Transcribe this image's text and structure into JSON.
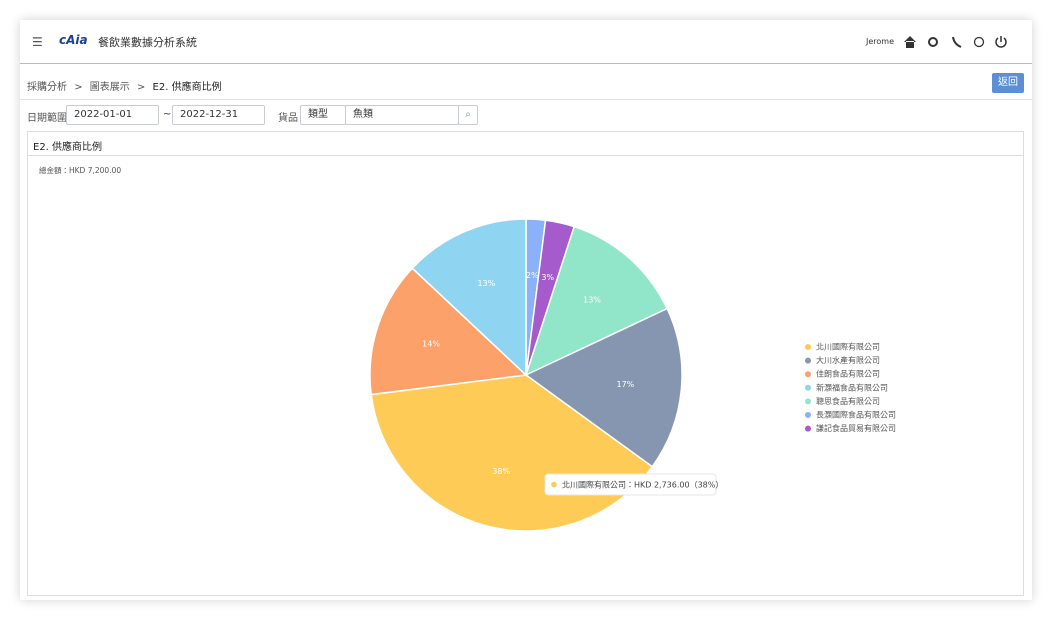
{
  "header": {
    "brand": "cAia",
    "title": "餐飲業數據分析系統",
    "user": "Jerome"
  },
  "breadcrumb": {
    "items": [
      "採購分析",
      "圖表展示",
      "E2. 供應商比例"
    ],
    "separator": ">"
  },
  "back_button": "返回",
  "filters": {
    "date_label": "日期範圍",
    "start": "2022-01-01",
    "separator": "~",
    "end": "2022-12-31",
    "goods_label": "貨品",
    "type": "類型",
    "category": "魚類"
  },
  "panel": {
    "title": "E2. 供應商比例"
  },
  "chart_data": {
    "type": "pie",
    "subtitle": "總金額：HKD 7,200.00",
    "categories": [
      "北川國際有限公司",
      "大川水產有限公司",
      "佳朗食品有限公司",
      "新灝福食品有限公司",
      "聰思食品有限公司",
      "長灝國際食品有限公司",
      "謙記食品貿易有限公司"
    ],
    "values": [
      38,
      17,
      14,
      13,
      13,
      2,
      3
    ],
    "value_labels": [
      "38%",
      "17%",
      "14%",
      "13%",
      "13%",
      "2%",
      "3%"
    ],
    "colors": [
      "#fecb56",
      "#8796b0",
      "#fda16b",
      "#8fd4f1",
      "#91e5c9",
      "#8ab1f9",
      "#a55bcb"
    ],
    "legend": "right",
    "tooltip": "北川國際有限公司：HKD 2,736.00（38%）"
  }
}
